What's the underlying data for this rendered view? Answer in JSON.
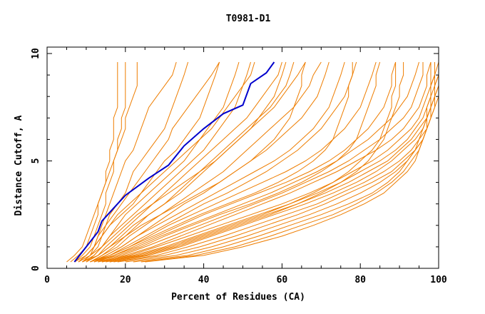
{
  "chart_data": {
    "type": "line",
    "title": "T0981-D1",
    "xlabel": "Percent of Residues (CA)",
    "ylabel": "Distance Cutoff, A",
    "xlim": [
      0,
      100
    ],
    "ylim": [
      0,
      10
    ],
    "x_ticks": [
      0,
      20,
      40,
      60,
      80,
      100
    ],
    "y_ticks": [
      0,
      5,
      10
    ],
    "x_tick_labels": [
      "0",
      "20",
      "40",
      "60",
      "80",
      "100"
    ],
    "y_tick_labels": [
      "0",
      "5",
      "10"
    ],
    "grid": false,
    "colors": {
      "highlight": "#0000cc",
      "others": "#ee7d00",
      "axis": "#000000"
    },
    "highlight_series": {
      "y": [
        0.3,
        1.0,
        1.7,
        2.2,
        2.8,
        3.4,
        4.2,
        4.8,
        5.7,
        6.5,
        7.2,
        7.6,
        8.6,
        9.1,
        9.6
      ],
      "x": [
        7,
        10,
        13,
        14,
        17,
        20,
        26,
        31,
        35,
        40,
        45,
        50,
        52,
        56,
        58
      ]
    },
    "other_series_y": [
      0.3,
      0.6,
      1.0,
      1.5,
      2.0,
      2.5,
      3.0,
      3.5,
      4.0,
      4.5,
      5.0,
      5.5,
      6.0,
      6.5,
      7.0,
      7.5,
      8.0,
      8.5,
      9.0,
      9.6
    ],
    "other_series_x": [
      [
        6,
        8,
        10,
        11,
        12,
        13,
        13,
        14,
        15,
        15,
        16,
        16,
        17,
        17,
        17,
        18,
        18,
        18,
        18,
        18
      ],
      [
        7,
        9,
        11,
        12,
        13,
        14,
        15,
        15,
        16,
        17,
        17,
        18,
        18,
        19,
        19,
        20,
        20,
        20,
        20,
        20
      ],
      [
        5,
        7,
        9,
        10,
        11,
        12,
        13,
        14,
        15,
        16,
        17,
        18,
        19,
        20,
        20,
        21,
        22,
        23,
        23,
        23
      ],
      [
        8,
        10,
        12,
        13,
        14,
        15,
        16,
        17,
        18,
        19,
        20,
        22,
        23,
        24,
        25,
        26,
        28,
        30,
        32,
        33
      ],
      [
        9,
        11,
        13,
        14,
        15,
        16,
        18,
        20,
        21,
        22,
        24,
        26,
        28,
        30,
        31,
        32,
        33,
        34,
        35,
        36
      ],
      [
        8,
        10,
        12,
        13,
        15,
        17,
        19,
        21,
        23,
        25,
        27,
        29,
        31,
        32,
        34,
        36,
        38,
        40,
        42,
        44
      ],
      [
        9,
        11,
        12,
        14,
        16,
        19,
        22,
        24,
        26,
        28,
        30,
        33,
        35,
        37,
        39,
        40,
        41,
        42,
        43,
        44
      ],
      [
        10,
        12,
        14,
        16,
        18,
        20,
        23,
        26,
        29,
        32,
        35,
        37,
        39,
        41,
        43,
        45,
        46,
        47,
        48,
        49
      ],
      [
        9,
        12,
        14,
        16,
        19,
        22,
        25,
        28,
        31,
        34,
        37,
        40,
        42,
        44,
        46,
        48,
        49,
        50,
        51,
        52
      ],
      [
        10,
        13,
        15,
        18,
        21,
        24,
        27,
        30,
        33,
        36,
        39,
        42,
        45,
        48,
        51,
        53,
        55,
        57,
        59,
        60
      ],
      [
        11,
        14,
        17,
        20,
        23,
        26,
        30,
        33,
        36,
        39,
        42,
        45,
        48,
        51,
        54,
        57,
        59,
        61,
        62,
        63
      ],
      [
        10,
        13,
        16,
        19,
        22,
        26,
        30,
        34,
        37,
        40,
        43,
        46,
        49,
        52,
        55,
        58,
        60,
        62,
        64,
        66
      ],
      [
        11,
        14,
        18,
        21,
        25,
        29,
        33,
        37,
        41,
        45,
        48,
        51,
        54,
        57,
        60,
        63,
        65,
        67,
        68,
        70
      ],
      [
        12,
        15,
        19,
        23,
        27,
        31,
        35,
        40,
        44,
        48,
        52,
        56,
        59,
        62,
        65,
        67,
        69,
        70,
        71,
        72
      ],
      [
        11,
        15,
        19,
        23,
        28,
        33,
        38,
        43,
        48,
        53,
        58,
        62,
        65,
        68,
        70,
        72,
        73,
        74,
        75,
        76
      ],
      [
        12,
        16,
        20,
        25,
        30,
        35,
        40,
        46,
        51,
        56,
        60,
        64,
        67,
        70,
        72,
        74,
        76,
        77,
        78,
        79
      ],
      [
        12,
        16,
        21,
        26,
        31,
        37,
        43,
        49,
        55,
        61,
        66,
        70,
        73,
        76,
        78,
        80,
        81,
        82,
        83,
        84
      ],
      [
        13,
        17,
        22,
        28,
        34,
        40,
        47,
        54,
        61,
        67,
        72,
        76,
        79,
        82,
        84,
        86,
        87,
        88,
        88,
        89
      ],
      [
        12,
        17,
        23,
        29,
        36,
        43,
        50,
        57,
        63,
        69,
        74,
        78,
        82,
        85,
        88,
        90,
        92,
        93,
        94,
        95
      ],
      [
        13,
        19,
        25,
        32,
        39,
        46,
        53,
        60,
        66,
        72,
        77,
        81,
        85,
        88,
        91,
        93,
        94,
        95,
        96,
        96
      ],
      [
        14,
        20,
        27,
        34,
        41,
        48,
        55,
        62,
        68,
        74,
        79,
        84,
        88,
        91,
        93,
        95,
        96,
        97,
        97,
        98
      ],
      [
        13,
        21,
        28,
        36,
        44,
        52,
        60,
        67,
        73,
        78,
        83,
        87,
        90,
        93,
        95,
        96,
        97,
        98,
        99,
        99
      ],
      [
        14,
        22,
        30,
        38,
        46,
        54,
        62,
        69,
        75,
        80,
        85,
        89,
        92,
        94,
        96,
        97,
        98,
        98,
        99,
        100
      ],
      [
        15,
        24,
        32,
        40,
        48,
        56,
        64,
        71,
        77,
        82,
        87,
        90,
        93,
        95,
        97,
        98,
        99,
        99,
        100,
        100
      ],
      [
        16,
        26,
        34,
        42,
        50,
        58,
        66,
        73,
        79,
        84,
        88,
        91,
        94,
        96,
        97,
        98,
        99,
        100,
        100,
        100
      ],
      [
        17,
        28,
        36,
        45,
        53,
        61,
        69,
        75,
        81,
        86,
        90,
        93,
        95,
        97,
        98,
        99,
        100,
        100,
        100,
        100
      ],
      [
        18,
        30,
        39,
        48,
        56,
        64,
        71,
        77,
        83,
        88,
        91,
        94,
        96,
        97,
        98,
        99,
        99,
        100,
        100,
        100
      ],
      [
        20,
        33,
        42,
        51,
        59,
        67,
        74,
        80,
        85,
        89,
        92,
        94,
        96,
        97,
        98,
        98,
        99,
        99,
        100,
        100
      ],
      [
        22,
        36,
        45,
        54,
        62,
        70,
        77,
        83,
        87,
        90,
        92,
        94,
        95,
        96,
        97,
        98,
        98,
        99,
        99,
        99
      ],
      [
        24,
        38,
        48,
        57,
        65,
        73,
        79,
        84,
        88,
        91,
        93,
        95,
        96,
        97,
        97,
        98,
        98,
        98,
        99,
        99
      ],
      [
        25,
        40,
        50,
        60,
        68,
        75,
        81,
        86,
        89,
        92,
        94,
        95,
        96,
        97,
        97,
        97,
        98,
        98,
        98,
        98
      ],
      [
        14,
        23,
        31,
        39,
        47,
        55,
        62,
        68,
        73,
        77,
        80,
        83,
        85,
        86,
        87,
        88,
        88,
        89,
        89,
        89
      ],
      [
        16,
        25,
        33,
        41,
        49,
        57,
        64,
        70,
        75,
        79,
        82,
        84,
        86,
        87,
        88,
        89,
        90,
        90,
        91,
        91
      ],
      [
        12,
        18,
        24,
        30,
        37,
        44,
        52,
        59,
        65,
        70,
        74,
        77,
        79,
        80,
        81,
        82,
        83,
        84,
        84,
        85
      ],
      [
        11,
        16,
        21,
        27,
        33,
        39,
        46,
        53,
        59,
        64,
        68,
        71,
        73,
        74,
        75,
        76,
        77,
        77,
        78,
        78
      ],
      [
        9,
        13,
        16,
        20,
        24,
        29,
        34,
        39,
        44,
        48,
        52,
        55,
        58,
        60,
        62,
        63,
        64,
        65,
        65,
        66
      ],
      [
        8,
        11,
        14,
        17,
        20,
        23,
        27,
        31,
        35,
        39,
        43,
        46,
        49,
        52,
        54,
        56,
        58,
        59,
        60,
        61
      ],
      [
        7,
        10,
        12,
        14,
        16,
        18,
        21,
        24,
        27,
        30,
        33,
        36,
        39,
        42,
        44,
        46,
        48,
        50,
        52,
        53
      ]
    ]
  }
}
